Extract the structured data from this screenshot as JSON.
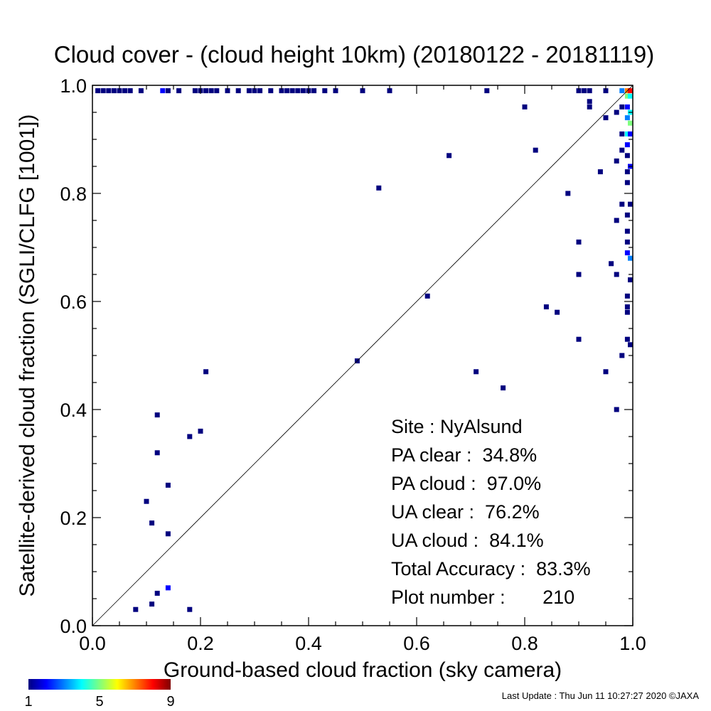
{
  "chart_data": {
    "type": "scatter",
    "title": "Cloud cover - (cloud height 10km)  (20180122 - 20181119)",
    "xlabel": "Ground-based cloud fraction (sky camera)",
    "ylabel": "Satellite-derived cloud fraction (SGLI/CLFG [1001])",
    "xlim": [
      0.0,
      1.0
    ],
    "ylim": [
      0.0,
      1.0
    ],
    "xticks": [
      "0.0",
      "0.2",
      "0.4",
      "0.6",
      "0.8",
      "1.0"
    ],
    "yticks": [
      "0.0",
      "0.2",
      "0.4",
      "0.6",
      "0.8",
      "1.0"
    ],
    "reference_line": "1:1 diagonal",
    "grid": false,
    "colorbar": {
      "min_label": "1",
      "mid_label": "5",
      "max_label": "9",
      "colors": [
        "#00007f",
        "#0000ff",
        "#007fff",
        "#00ffff",
        "#7fff7f",
        "#ffff00",
        "#ff7f00",
        "#ff0000",
        "#7f0000"
      ]
    },
    "stats": [
      "Site : NyAlsund",
      "PA clear :  34.8%",
      "PA cloud :  97.0%",
      "UA clear :  76.2%",
      "UA cloud :  84.1%",
      "Total Accuracy :  83.3%",
      "Plot number :       210"
    ],
    "points": [
      [
        0.01,
        0.99,
        1
      ],
      [
        0.02,
        0.99,
        1
      ],
      [
        0.03,
        0.99,
        1
      ],
      [
        0.04,
        0.99,
        1
      ],
      [
        0.05,
        0.99,
        1
      ],
      [
        0.06,
        0.99,
        1
      ],
      [
        0.07,
        0.99,
        1
      ],
      [
        0.09,
        0.99,
        1
      ],
      [
        0.13,
        0.99,
        2
      ],
      [
        0.14,
        0.99,
        1
      ],
      [
        0.16,
        0.99,
        1
      ],
      [
        0.19,
        0.99,
        1
      ],
      [
        0.2,
        0.99,
        1
      ],
      [
        0.21,
        0.99,
        1
      ],
      [
        0.22,
        0.99,
        1
      ],
      [
        0.23,
        0.99,
        1
      ],
      [
        0.25,
        0.99,
        1
      ],
      [
        0.27,
        0.99,
        1
      ],
      [
        0.29,
        0.99,
        1
      ],
      [
        0.3,
        0.99,
        1
      ],
      [
        0.31,
        0.99,
        1
      ],
      [
        0.33,
        0.99,
        1
      ],
      [
        0.35,
        0.99,
        1
      ],
      [
        0.36,
        0.99,
        1
      ],
      [
        0.37,
        0.99,
        1
      ],
      [
        0.38,
        0.99,
        1
      ],
      [
        0.39,
        0.99,
        1
      ],
      [
        0.4,
        0.99,
        1
      ],
      [
        0.41,
        0.99,
        1
      ],
      [
        0.43,
        0.99,
        1
      ],
      [
        0.45,
        0.99,
        1
      ],
      [
        0.5,
        0.99,
        1
      ],
      [
        0.55,
        0.99,
        1
      ],
      [
        0.73,
        0.99,
        1
      ],
      [
        0.9,
        0.99,
        1
      ],
      [
        0.91,
        0.99,
        1
      ],
      [
        0.92,
        0.99,
        1
      ],
      [
        0.95,
        0.99,
        1
      ],
      [
        0.98,
        0.99,
        3
      ],
      [
        0.99,
        0.99,
        7
      ],
      [
        1.0,
        0.99,
        8
      ],
      [
        0.99,
        0.98,
        5
      ],
      [
        1.0,
        0.98,
        4
      ],
      [
        0.99,
        0.96,
        2
      ],
      [
        1.0,
        0.95,
        4
      ],
      [
        0.99,
        0.94,
        3
      ],
      [
        1.0,
        0.93,
        5
      ],
      [
        0.99,
        0.91,
        4
      ],
      [
        1.0,
        0.91,
        2
      ],
      [
        0.99,
        0.89,
        2
      ],
      [
        0.99,
        0.87,
        1
      ],
      [
        1.0,
        0.85,
        2
      ],
      [
        0.99,
        0.84,
        1
      ],
      [
        0.99,
        0.82,
        1
      ],
      [
        1.0,
        0.78,
        1
      ],
      [
        0.99,
        0.76,
        1
      ],
      [
        0.99,
        0.73,
        1
      ],
      [
        0.99,
        0.71,
        1
      ],
      [
        0.99,
        0.69,
        2
      ],
      [
        1.0,
        0.68,
        3
      ],
      [
        1.0,
        0.64,
        1
      ],
      [
        0.99,
        0.61,
        1
      ],
      [
        0.99,
        0.59,
        1
      ],
      [
        0.99,
        0.58,
        1
      ],
      [
        0.99,
        0.53,
        1
      ],
      [
        1.0,
        0.52,
        1
      ],
      [
        0.98,
        0.96,
        1
      ],
      [
        0.97,
        0.95,
        1
      ],
      [
        0.95,
        0.94,
        1
      ],
      [
        0.92,
        0.96,
        1
      ],
      [
        0.92,
        0.97,
        1
      ],
      [
        0.98,
        0.88,
        1
      ],
      [
        0.98,
        0.91,
        1
      ],
      [
        0.97,
        0.86,
        1
      ],
      [
        0.94,
        0.84,
        1
      ],
      [
        0.98,
        0.78,
        1
      ],
      [
        0.97,
        0.75,
        1
      ],
      [
        0.96,
        0.67,
        1
      ],
      [
        0.97,
        0.65,
        1
      ],
      [
        0.98,
        0.5,
        1
      ],
      [
        0.95,
        0.47,
        1
      ],
      [
        0.97,
        0.4,
        1
      ],
      [
        0.8,
        0.96,
        1
      ],
      [
        0.82,
        0.88,
        1
      ],
      [
        0.88,
        0.8,
        1
      ],
      [
        0.9,
        0.71,
        1
      ],
      [
        0.9,
        0.65,
        1
      ],
      [
        0.84,
        0.59,
        1
      ],
      [
        0.86,
        0.58,
        1
      ],
      [
        0.9,
        0.53,
        1
      ],
      [
        0.66,
        0.87,
        1
      ],
      [
        0.53,
        0.81,
        1
      ],
      [
        0.62,
        0.61,
        1
      ],
      [
        0.49,
        0.49,
        1
      ],
      [
        0.71,
        0.47,
        1
      ],
      [
        0.76,
        0.44,
        1
      ],
      [
        0.21,
        0.47,
        1
      ],
      [
        0.12,
        0.39,
        1
      ],
      [
        0.2,
        0.36,
        1
      ],
      [
        0.18,
        0.35,
        1
      ],
      [
        0.12,
        0.32,
        1
      ],
      [
        0.14,
        0.26,
        1
      ],
      [
        0.1,
        0.23,
        1
      ],
      [
        0.11,
        0.19,
        1
      ],
      [
        0.14,
        0.17,
        1
      ],
      [
        0.14,
        0.07,
        2
      ],
      [
        0.12,
        0.06,
        1
      ],
      [
        0.11,
        0.04,
        1
      ],
      [
        0.08,
        0.03,
        1
      ],
      [
        0.18,
        0.03,
        1
      ]
    ]
  },
  "footer": {
    "last_update": "Last Update : Thu Jun 11 10:27:27 2020  ©JAXA"
  }
}
